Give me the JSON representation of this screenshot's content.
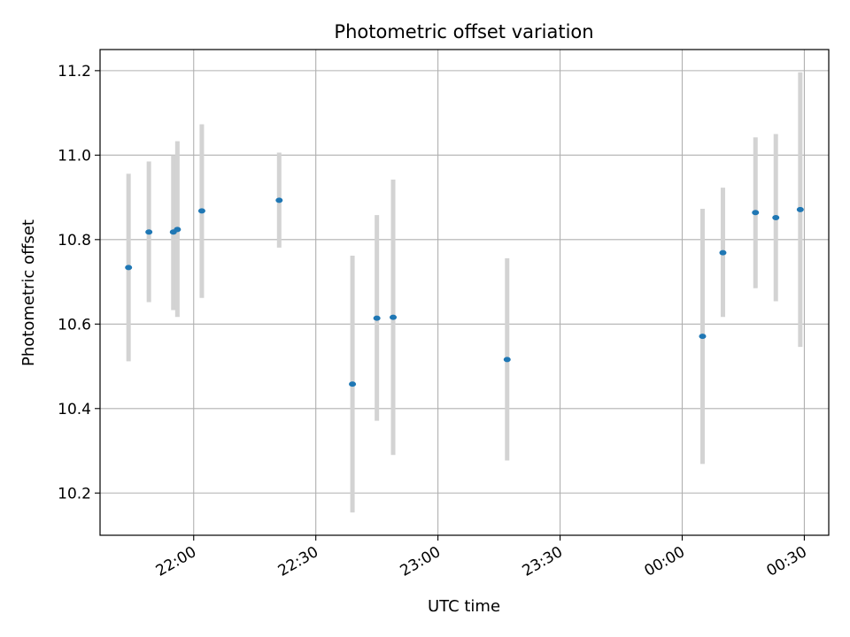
{
  "chart_data": {
    "type": "scatter",
    "title": "Photometric offset variation",
    "xlabel": "UTC time",
    "ylabel": "Photometric offset",
    "x_unit": "UTC clock time",
    "xlim": [
      "21:37",
      "00:36"
    ],
    "ylim": [
      10.1,
      11.25
    ],
    "x_ticks": [
      "22:00",
      "22:30",
      "23:00",
      "23:30",
      "00:00",
      "00:30"
    ],
    "y_ticks": [
      "10.2",
      "10.4",
      "10.6",
      "10.8",
      "11.0",
      "11.2"
    ],
    "grid": true,
    "legend": "none",
    "marker_color": "#1f77b4",
    "errorbar_color": "#d3d3d3",
    "points": [
      {
        "x": "21:44",
        "y": 10.734,
        "err_low": 10.512,
        "err_high": 10.956
      },
      {
        "x": "21:49",
        "y": 10.818,
        "err_low": 10.652,
        "err_high": 10.985
      },
      {
        "x": "21:55",
        "y": 10.818,
        "err_low": 10.633,
        "err_high": 11.0
      },
      {
        "x": "21:56",
        "y": 10.824,
        "err_low": 10.617,
        "err_high": 11.033
      },
      {
        "x": "22:02",
        "y": 10.868,
        "err_low": 10.662,
        "err_high": 11.073
      },
      {
        "x": "22:21",
        "y": 10.893,
        "err_low": 10.781,
        "err_high": 11.006
      },
      {
        "x": "22:39",
        "y": 10.458,
        "err_low": 10.154,
        "err_high": 10.762
      },
      {
        "x": "22:45",
        "y": 10.614,
        "err_low": 10.371,
        "err_high": 10.858
      },
      {
        "x": "22:49",
        "y": 10.616,
        "err_low": 10.29,
        "err_high": 10.942
      },
      {
        "x": "23:17",
        "y": 10.516,
        "err_low": 10.277,
        "err_high": 10.756
      },
      {
        "x": "00:05",
        "y": 10.571,
        "err_low": 10.269,
        "err_high": 10.873
      },
      {
        "x": "00:10",
        "y": 10.769,
        "err_low": 10.617,
        "err_high": 10.923
      },
      {
        "x": "00:18",
        "y": 10.864,
        "err_low": 10.685,
        "err_high": 11.042
      },
      {
        "x": "00:23",
        "y": 10.852,
        "err_low": 10.654,
        "err_high": 11.05
      },
      {
        "x": "00:29",
        "y": 10.871,
        "err_low": 10.546,
        "err_high": 11.196
      }
    ]
  }
}
